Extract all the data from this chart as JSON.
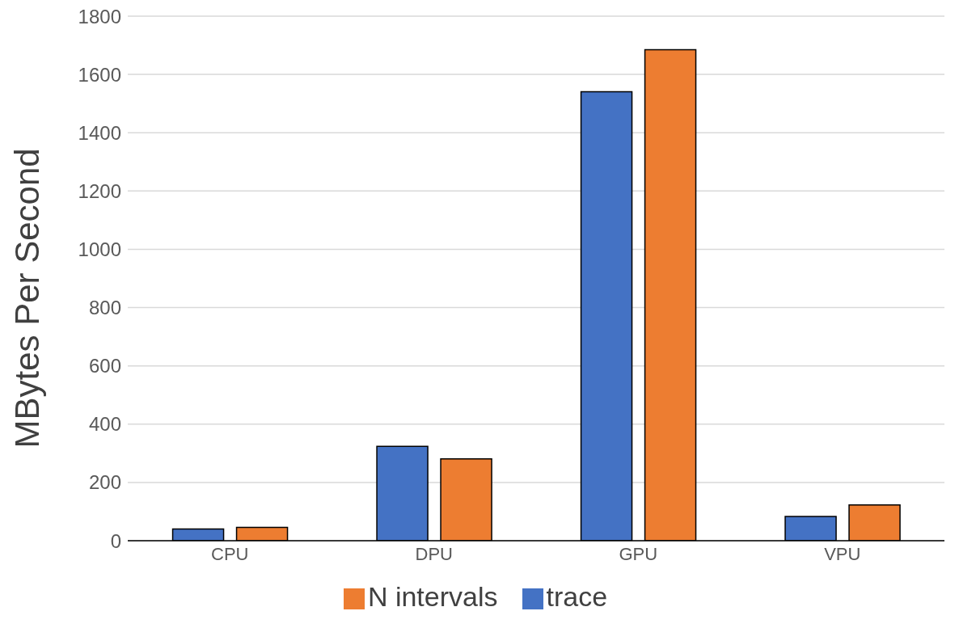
{
  "chart_data": {
    "type": "bar",
    "ylabel": "MBytes Per Second",
    "categories": [
      "CPU",
      "DPU",
      "GPU",
      "VPU"
    ],
    "series": [
      {
        "name": "trace",
        "color": "#4472c4",
        "values": [
          40,
          324,
          1541,
          83
        ]
      },
      {
        "name": "N intervals",
        "color": "#ed7d31",
        "values": [
          46,
          281,
          1685,
          123
        ]
      }
    ],
    "ylim": [
      0,
      1800
    ],
    "yticks": [
      0,
      200,
      400,
      600,
      800,
      1000,
      1200,
      1400,
      1600,
      1800
    ],
    "grid": "y",
    "legend": "bottom"
  }
}
